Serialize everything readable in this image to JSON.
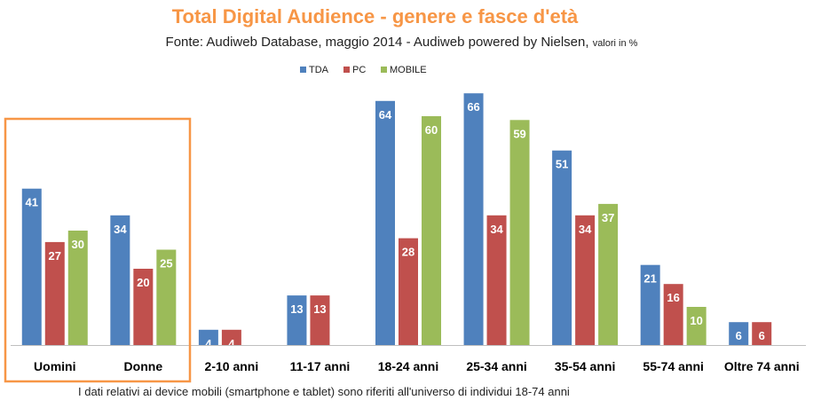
{
  "chart_data": {
    "type": "bar",
    "title": "Total Digital Audience - genere e fasce d'età",
    "subtitle": "Fonte: Audiweb Database, maggio 2014 - Audiweb powered by Nielsen,",
    "subtitle_small": "valori in %",
    "categories": [
      "Uomini",
      "Donne",
      "2-10 anni",
      "11-17 anni",
      "18-24 anni",
      "25-34 anni",
      "35-54 anni",
      "55-74 anni",
      "Oltre 74 anni"
    ],
    "series": [
      {
        "name": "TDA",
        "color": "#4f81bd",
        "values": [
          41,
          34,
          4,
          13,
          64,
          66,
          51,
          21,
          6
        ]
      },
      {
        "name": "PC",
        "color": "#c0504d",
        "values": [
          27,
          20,
          4,
          13,
          28,
          34,
          34,
          16,
          6
        ]
      },
      {
        "name": "MOBILE",
        "color": "#9bbb59",
        "values": [
          30,
          25,
          null,
          null,
          60,
          59,
          37,
          10,
          null
        ]
      }
    ],
    "ylim": [
      0,
      70
    ],
    "legend_position": "top",
    "grid": false,
    "highlight_box": {
      "categories": [
        "Uomini",
        "Donne"
      ],
      "color": "#f79646"
    },
    "footnote": "I dati relativi ai device mobili  (smartphone  e tablet)  sono riferiti  all'universo di individui  18-74 anni"
  }
}
